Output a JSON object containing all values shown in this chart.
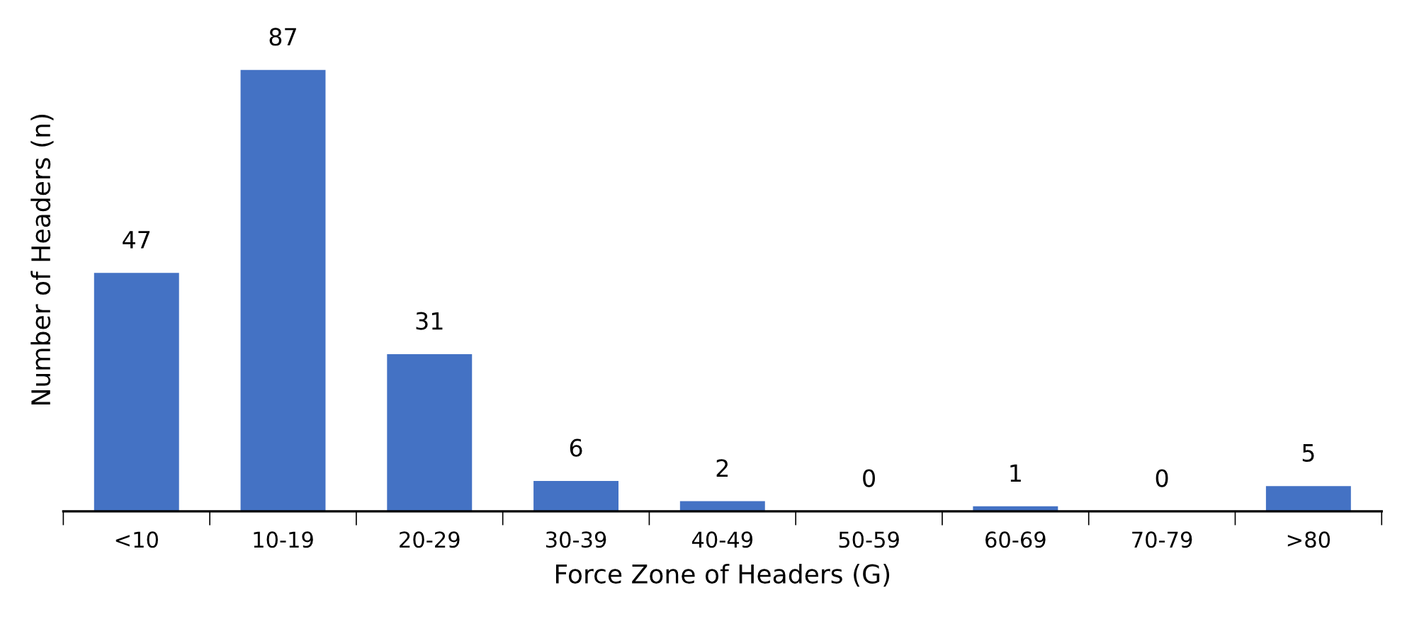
{
  "chart_data": {
    "type": "bar",
    "xlabel": "Force Zone of Headers (G)",
    "ylabel": "Number of Headers (n)",
    "categories": [
      "<10",
      "10-19",
      "20-29",
      "30-39",
      "40-49",
      "50-59",
      "60-69",
      "70-79",
      ">80"
    ],
    "values": [
      47,
      87,
      31,
      6,
      2,
      0,
      1,
      0,
      5
    ],
    "color": "#4472c4",
    "tick_labels": "x",
    "data_labels": true,
    "grid": false,
    "legend": false
  }
}
